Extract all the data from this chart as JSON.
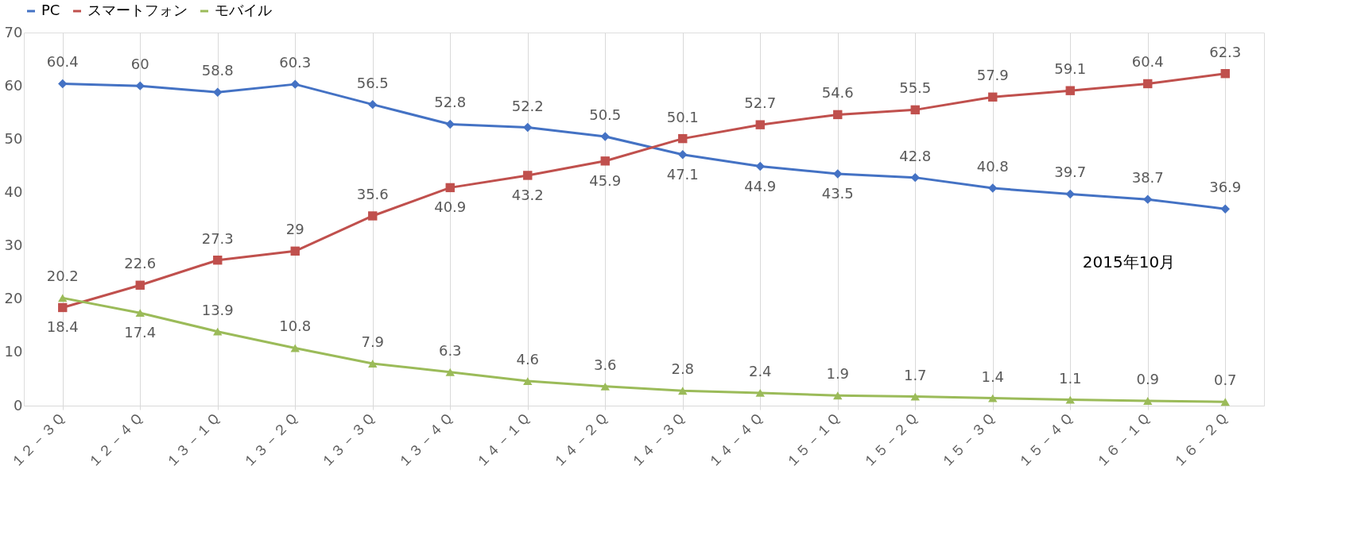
{
  "chart_data": {
    "type": "line",
    "categories": [
      "１２－３Ｑ",
      "１２－４Ｑ",
      "１３－１Ｑ",
      "１３－２Ｑ",
      "１３－３Ｑ",
      "１３－４Ｑ",
      "１４－１Ｑ",
      "１４－２Ｑ",
      "１４－３Ｑ",
      "１４－４Ｑ",
      "１５－１Ｑ",
      "１５－２Ｑ",
      "１５－３Ｑ",
      "１５－４Ｑ",
      "１６－１Ｑ",
      "１６－２Ｑ"
    ],
    "series": [
      {
        "name": "PC",
        "color": "#4472c4",
        "marker": "diamond",
        "values": [
          60.4,
          60,
          58.8,
          60.3,
          56.5,
          52.8,
          52.2,
          50.5,
          47.1,
          44.9,
          43.5,
          42.8,
          40.8,
          39.7,
          38.7,
          36.9
        ]
      },
      {
        "name": "スマートフォン",
        "color": "#c0504d",
        "marker": "square",
        "values": [
          18.4,
          22.6,
          27.3,
          29,
          35.6,
          40.9,
          43.2,
          45.9,
          50.1,
          52.7,
          54.6,
          55.5,
          57.9,
          59.1,
          60.4,
          62.3
        ]
      },
      {
        "name": "モバイル",
        "color": "#9bbb59",
        "marker": "triangle",
        "values": [
          20.2,
          17.4,
          13.9,
          10.8,
          7.9,
          6.3,
          4.6,
          3.6,
          2.8,
          2.4,
          1.9,
          1.7,
          1.4,
          1.1,
          0.9,
          0.7
        ]
      }
    ],
    "ylim": [
      0,
      70
    ],
    "yticks": [
      0,
      10,
      20,
      30,
      40,
      50,
      60,
      70
    ],
    "grid": "x",
    "legend": "top",
    "data_labels": true,
    "line_style": "solid",
    "annotations": [
      "2015年10月"
    ]
  }
}
